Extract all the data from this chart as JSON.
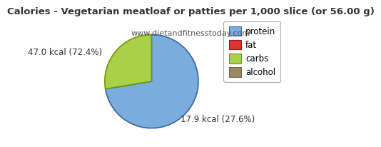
{
  "title": "Calories - Vegetarian meatloaf or patties per 1,000 slice (or 56.00 g)",
  "subtitle": "www.dietandfitnesstoday.com",
  "slices": [
    72.4,
    27.6
  ],
  "colors": [
    "#7aacdc",
    "#aad04a"
  ],
  "edge_colors": [
    "#3366aa",
    "#6a9900"
  ],
  "legend_labels": [
    "protein",
    "fat",
    "carbs",
    "alcohol"
  ],
  "legend_colors": [
    "#7aacdc",
    "#dd3333",
    "#aad04a",
    "#998866"
  ],
  "legend_edge_colors": [
    "#3366aa",
    "#aa1111",
    "#6a9900",
    "#776644"
  ],
  "label_protein": "47.0 kcal (72.4%)",
  "label_carbs": "17.9 kcal (27.6%)",
  "start_angle": 90,
  "title_fontsize": 9.5,
  "subtitle_fontsize": 8,
  "label_fontsize": 8.5,
  "legend_fontsize": 8.5,
  "background_color": "#ffffff",
  "text_color": "#333333"
}
